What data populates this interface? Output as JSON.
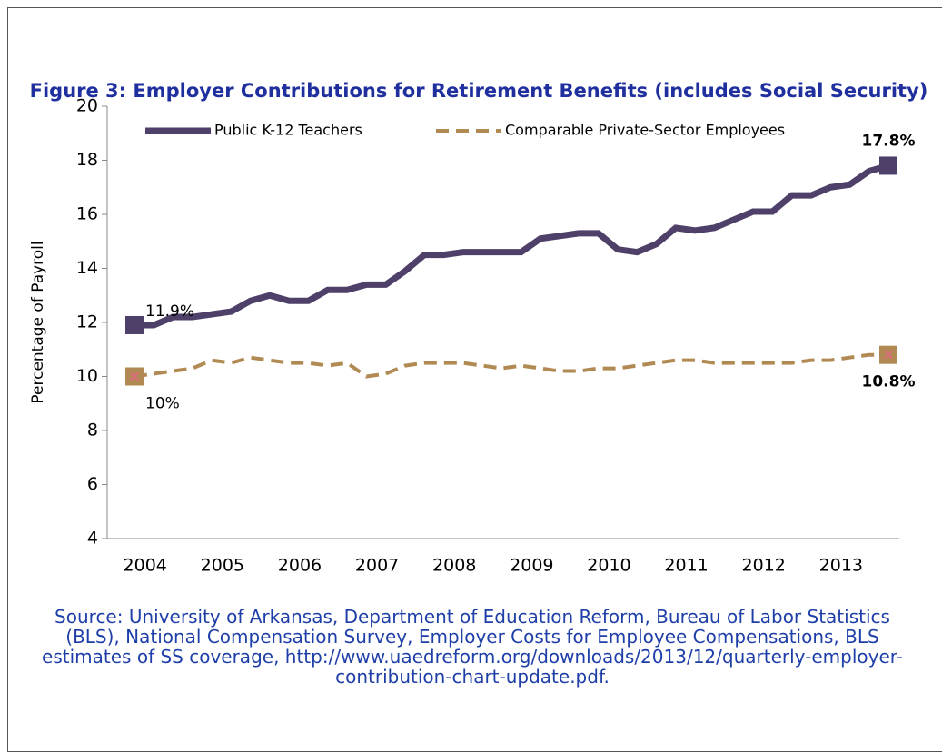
{
  "chart_data": {
    "type": "line",
    "title": "Figure 3: Employer Contributions for Retirement Benefits (includes Social Security)",
    "ylabel": "Percentage of Payroll",
    "source": "Source: University of Arkansas, Department of Education Reform, Bureau of Labor Statistics (BLS), National Compensation Survey, Employer Costs for Employee Compensations, BLS estimates of SS coverage, http://www.uaedreform.org/downloads/2013/12/quarterly-employer-contribution-chart-update.pdf.",
    "categories": [
      "2004",
      null,
      null,
      null,
      "2005",
      null,
      null,
      null,
      "2006",
      null,
      null,
      null,
      "2007",
      null,
      null,
      null,
      "2008",
      null,
      null,
      null,
      "2009",
      null,
      null,
      null,
      "2010",
      null,
      null,
      null,
      "2011",
      null,
      null,
      null,
      "2012",
      null,
      null,
      null,
      "2013",
      null,
      null,
      null
    ],
    "series": [
      {
        "name": "Public K-12 Teachers",
        "color": "#4e4068",
        "dash": false,
        "values": [
          11.9,
          11.9,
          12.2,
          12.2,
          12.3,
          12.4,
          12.8,
          13.0,
          12.8,
          12.8,
          13.2,
          13.2,
          13.4,
          13.4,
          13.9,
          14.5,
          14.5,
          14.6,
          14.6,
          14.6,
          14.6,
          15.1,
          15.2,
          15.3,
          15.3,
          14.7,
          14.6,
          14.9,
          15.5,
          15.4,
          15.5,
          15.8,
          16.1,
          16.1,
          16.7,
          16.7,
          17.0,
          17.1,
          17.6,
          17.8
        ],
        "value_labels": [
          "11.9%",
          null,
          null,
          null,
          null,
          null,
          null,
          null,
          null,
          null,
          null,
          null,
          null,
          null,
          null,
          null,
          null,
          null,
          null,
          null,
          null,
          null,
          null,
          null,
          null,
          null,
          null,
          null,
          null,
          null,
          null,
          null,
          null,
          null,
          null,
          null,
          null,
          null,
          null,
          "17.8%"
        ]
      },
      {
        "name": "Comparable Private-Sector Employees",
        "color": "#b08a52",
        "dash": true,
        "values": [
          10.0,
          10.1,
          10.2,
          10.3,
          10.6,
          10.5,
          10.7,
          10.6,
          10.5,
          10.5,
          10.4,
          10.5,
          10.0,
          10.1,
          10.4,
          10.5,
          10.5,
          10.5,
          10.4,
          10.3,
          10.4,
          10.3,
          10.2,
          10.2,
          10.3,
          10.3,
          10.4,
          10.5,
          10.6,
          10.6,
          10.5,
          10.5,
          10.5,
          10.5,
          10.5,
          10.6,
          10.6,
          10.7,
          10.8,
          10.8
        ],
        "value_labels": [
          "10%",
          null,
          null,
          null,
          null,
          null,
          null,
          null,
          null,
          null,
          null,
          null,
          null,
          null,
          null,
          null,
          null,
          null,
          null,
          null,
          null,
          null,
          null,
          null,
          null,
          null,
          null,
          null,
          null,
          null,
          null,
          null,
          null,
          null,
          null,
          null,
          null,
          null,
          null,
          "10.8%"
        ]
      }
    ],
    "ylim": [
      4,
      20
    ],
    "yticks": [
      4,
      6,
      8,
      10,
      12,
      14,
      16,
      18,
      20
    ],
    "grid": false
  }
}
